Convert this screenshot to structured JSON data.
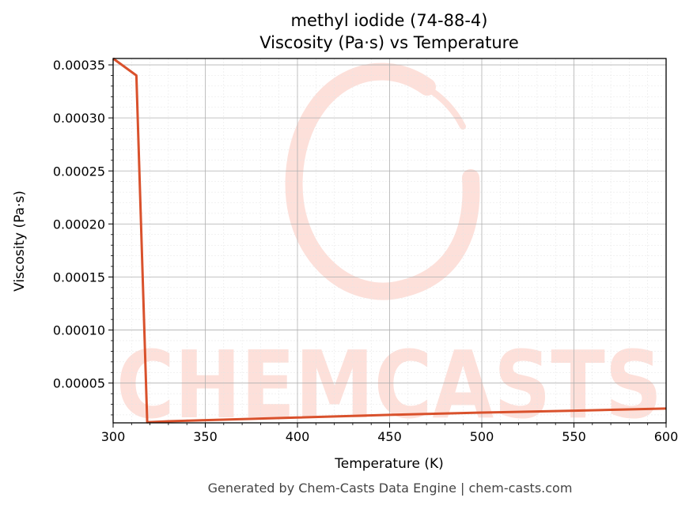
{
  "chart_data": {
    "type": "line",
    "title": "methyl iodide (74-88-4)",
    "subtitle": "Viscosity (Pa·s) vs Temperature",
    "xlabel": "Temperature (K)",
    "ylabel": "Viscosity (Pa·s)",
    "xlim": [
      300,
      600
    ],
    "ylim": [
      1.25e-05,
      0.000356
    ],
    "x_ticks": [
      "300",
      "350",
      "400",
      "450",
      "500",
      "550",
      "600"
    ],
    "y_ticks": [
      "0.00005",
      "0.00010",
      "0.00015",
      "0.00020",
      "0.00025",
      "0.00030",
      "0.00035"
    ],
    "grid": true,
    "series": [
      {
        "color": "#d9512c",
        "x": [
          300,
          312.6,
          318.5,
          330,
          350,
          400,
          450,
          500,
          550,
          600
        ],
        "y": [
          0.000356,
          0.00034,
          1.3e-05,
          1.4e-05,
          1.5e-05,
          1.75e-05,
          2e-05,
          2.22e-05,
          2.4e-05,
          2.6e-05
        ]
      }
    ]
  },
  "watermark": {
    "text": "CHEMCASTS",
    "color": "#fdd9d3"
  },
  "footer": "Generated by Chem-Casts Data Engine | chem-casts.com"
}
